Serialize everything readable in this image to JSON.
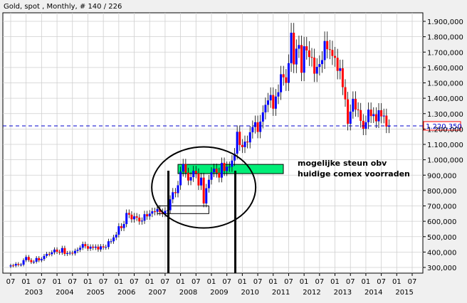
{
  "chart_data": {
    "type": "candlestick",
    "title": "Gold, spot , Monthly, # 140 / 226",
    "y_unit": "USD/oz",
    "ylim": [
      250,
      1950
    ],
    "y_ticks": [
      300,
      400,
      500,
      600,
      700,
      800,
      900,
      1000,
      1100,
      1200,
      1300,
      1400,
      1500,
      1600,
      1700,
      1800,
      1900
    ],
    "y_tick_labels": [
      "300,000",
      "400,000",
      "500,000",
      "600,000",
      "700,000",
      "800,000",
      "900,000",
      "1.000,000",
      "1.100,000",
      "1.200,000",
      "1.300,000",
      "1.400,000",
      "1.500,000",
      "1.600,000",
      "1.700,000",
      "1.800,000",
      "1.900,000"
    ],
    "x_start": "2002-07",
    "x_end": "2015-07",
    "x_month_labels": [
      "07",
      "01",
      "07",
      "01",
      "07",
      "01",
      "07",
      "01",
      "07",
      "01",
      "07",
      "01",
      "07",
      "01",
      "07",
      "01",
      "07",
      "01",
      "07",
      "01",
      "07",
      "01",
      "07",
      "01",
      "07",
      "01",
      "07"
    ],
    "x_year_labels": [
      "2003",
      "2004",
      "2005",
      "2006",
      "2007",
      "2008",
      "2009",
      "2010",
      "2011",
      "2012",
      "2013",
      "2014",
      "2015"
    ],
    "grid": true,
    "up_color": "#0000ff",
    "down_color": "#ff0000",
    "current_price": 1220.35,
    "current_label": "1.220,350",
    "annotation": {
      "text_line1": "mogelijke steun obv",
      "text_line2": "huidige comex voorraden",
      "zone_low": 910,
      "zone_high": 970,
      "zone_from": "2007-12",
      "zone_to": "2010-12",
      "zone_color": "#00ee77"
    },
    "box_zone": {
      "low": 650,
      "high": 700,
      "from": "2007-04",
      "to": "2008-12"
    },
    "vlines": [
      "2007-08",
      "2009-10"
    ],
    "circle_center": [
      "2008-10",
      820
    ],
    "series": [
      {
        "month": "2002-07",
        "close": 313
      },
      {
        "month": "2002-08",
        "close": 312
      },
      {
        "month": "2002-09",
        "close": 323
      },
      {
        "month": "2002-10",
        "close": 317
      },
      {
        "month": "2002-11",
        "close": 318
      },
      {
        "month": "2002-12",
        "close": 347
      },
      {
        "month": "2003-01",
        "close": 368
      },
      {
        "month": "2003-02",
        "close": 348
      },
      {
        "month": "2003-03",
        "close": 334
      },
      {
        "month": "2003-04",
        "close": 337
      },
      {
        "month": "2003-05",
        "close": 361
      },
      {
        "month": "2003-06",
        "close": 346
      },
      {
        "month": "2003-07",
        "close": 354
      },
      {
        "month": "2003-08",
        "close": 375
      },
      {
        "month": "2003-09",
        "close": 388
      },
      {
        "month": "2003-10",
        "close": 386
      },
      {
        "month": "2003-11",
        "close": 398
      },
      {
        "month": "2003-12",
        "close": 416
      },
      {
        "month": "2004-01",
        "close": 402
      },
      {
        "month": "2004-02",
        "close": 396
      },
      {
        "month": "2004-03",
        "close": 426
      },
      {
        "month": "2004-04",
        "close": 388
      },
      {
        "month": "2004-05",
        "close": 393
      },
      {
        "month": "2004-06",
        "close": 395
      },
      {
        "month": "2004-07",
        "close": 391
      },
      {
        "month": "2004-08",
        "close": 408
      },
      {
        "month": "2004-09",
        "close": 415
      },
      {
        "month": "2004-10",
        "close": 428
      },
      {
        "month": "2004-11",
        "close": 452
      },
      {
        "month": "2004-12",
        "close": 438
      },
      {
        "month": "2005-01",
        "close": 422
      },
      {
        "month": "2005-02",
        "close": 435
      },
      {
        "month": "2005-03",
        "close": 428
      },
      {
        "month": "2005-04",
        "close": 435
      },
      {
        "month": "2005-05",
        "close": 417
      },
      {
        "month": "2005-06",
        "close": 437
      },
      {
        "month": "2005-07",
        "close": 430
      },
      {
        "month": "2005-08",
        "close": 433
      },
      {
        "month": "2005-09",
        "close": 470
      },
      {
        "month": "2005-10",
        "close": 470
      },
      {
        "month": "2005-11",
        "close": 495
      },
      {
        "month": "2005-12",
        "close": 513
      },
      {
        "month": "2006-01",
        "close": 568
      },
      {
        "month": "2006-02",
        "close": 556
      },
      {
        "month": "2006-03",
        "close": 582
      },
      {
        "month": "2006-04",
        "close": 654
      },
      {
        "month": "2006-05",
        "close": 643
      },
      {
        "month": "2006-06",
        "close": 613
      },
      {
        "month": "2006-07",
        "close": 632
      },
      {
        "month": "2006-08",
        "close": 624
      },
      {
        "month": "2006-09",
        "close": 599
      },
      {
        "month": "2006-10",
        "close": 604
      },
      {
        "month": "2006-11",
        "close": 646
      },
      {
        "month": "2006-12",
        "close": 632
      },
      {
        "month": "2007-01",
        "close": 650
      },
      {
        "month": "2007-02",
        "close": 665
      },
      {
        "month": "2007-03",
        "close": 662
      },
      {
        "month": "2007-04",
        "close": 680
      },
      {
        "month": "2007-05",
        "close": 660
      },
      {
        "month": "2007-06",
        "close": 650
      },
      {
        "month": "2007-07",
        "close": 668
      },
      {
        "month": "2007-08",
        "close": 672
      },
      {
        "month": "2007-09",
        "close": 743
      },
      {
        "month": "2007-10",
        "close": 789
      },
      {
        "month": "2007-11",
        "close": 783
      },
      {
        "month": "2007-12",
        "close": 834
      },
      {
        "month": "2008-01",
        "close": 923
      },
      {
        "month": "2008-02",
        "close": 972
      },
      {
        "month": "2008-03",
        "close": 916
      },
      {
        "month": "2008-04",
        "close": 865
      },
      {
        "month": "2008-05",
        "close": 887
      },
      {
        "month": "2008-06",
        "close": 928
      },
      {
        "month": "2008-07",
        "close": 912
      },
      {
        "month": "2008-08",
        "close": 833
      },
      {
        "month": "2008-09",
        "close": 884
      },
      {
        "month": "2008-10",
        "close": 716
      },
      {
        "month": "2008-11",
        "close": 815
      },
      {
        "month": "2008-12",
        "close": 870
      },
      {
        "month": "2009-01",
        "close": 919
      },
      {
        "month": "2009-02",
        "close": 942
      },
      {
        "month": "2009-03",
        "close": 916
      },
      {
        "month": "2009-04",
        "close": 884
      },
      {
        "month": "2009-05",
        "close": 980
      },
      {
        "month": "2009-06",
        "close": 927
      },
      {
        "month": "2009-07",
        "close": 955
      },
      {
        "month": "2009-08",
        "close": 955
      },
      {
        "month": "2009-09",
        "close": 995
      },
      {
        "month": "2009-10",
        "close": 1040
      },
      {
        "month": "2009-11",
        "close": 1182
      },
      {
        "month": "2009-12",
        "close": 1096
      },
      {
        "month": "2010-01",
        "close": 1082
      },
      {
        "month": "2010-02",
        "close": 1118
      },
      {
        "month": "2010-03",
        "close": 1113
      },
      {
        "month": "2010-04",
        "close": 1179
      },
      {
        "month": "2010-05",
        "close": 1213
      },
      {
        "month": "2010-06",
        "close": 1244
      },
      {
        "month": "2010-07",
        "close": 1181
      },
      {
        "month": "2010-08",
        "close": 1248
      },
      {
        "month": "2010-09",
        "close": 1308
      },
      {
        "month": "2010-10",
        "close": 1357
      },
      {
        "month": "2010-11",
        "close": 1386
      },
      {
        "month": "2010-12",
        "close": 1421
      },
      {
        "month": "2011-01",
        "close": 1332
      },
      {
        "month": "2011-02",
        "close": 1411
      },
      {
        "month": "2011-03",
        "close": 1439
      },
      {
        "month": "2011-04",
        "close": 1556
      },
      {
        "month": "2011-05",
        "close": 1536
      },
      {
        "month": "2011-06",
        "close": 1500
      },
      {
        "month": "2011-07",
        "close": 1628
      },
      {
        "month": "2011-08",
        "close": 1826
      },
      {
        "month": "2011-09",
        "close": 1620
      },
      {
        "month": "2011-10",
        "close": 1722
      },
      {
        "month": "2011-11",
        "close": 1746
      },
      {
        "month": "2011-12",
        "close": 1566
      },
      {
        "month": "2012-01",
        "close": 1738
      },
      {
        "month": "2012-02",
        "close": 1711
      },
      {
        "month": "2012-03",
        "close": 1668
      },
      {
        "month": "2012-04",
        "close": 1664
      },
      {
        "month": "2012-05",
        "close": 1560
      },
      {
        "month": "2012-06",
        "close": 1604
      },
      {
        "month": "2012-07",
        "close": 1622
      },
      {
        "month": "2012-08",
        "close": 1648
      },
      {
        "month": "2012-09",
        "close": 1772
      },
      {
        "month": "2012-10",
        "close": 1719
      },
      {
        "month": "2012-11",
        "close": 1714
      },
      {
        "month": "2012-12",
        "close": 1675
      },
      {
        "month": "2013-01",
        "close": 1663
      },
      {
        "month": "2013-02",
        "close": 1578
      },
      {
        "month": "2013-03",
        "close": 1595
      },
      {
        "month": "2013-04",
        "close": 1472
      },
      {
        "month": "2013-05",
        "close": 1393
      },
      {
        "month": "2013-06",
        "close": 1234
      },
      {
        "month": "2013-07",
        "close": 1313
      },
      {
        "month": "2013-08",
        "close": 1396
      },
      {
        "month": "2013-09",
        "close": 1327
      },
      {
        "month": "2013-10",
        "close": 1323
      },
      {
        "month": "2013-11",
        "close": 1253
      },
      {
        "month": "2013-12",
        "close": 1202
      },
      {
        "month": "2014-01",
        "close": 1244
      },
      {
        "month": "2014-02",
        "close": 1326
      },
      {
        "month": "2014-03",
        "close": 1284
      },
      {
        "month": "2014-04",
        "close": 1296
      },
      {
        "month": "2014-05",
        "close": 1250
      },
      {
        "month": "2014-06",
        "close": 1322
      },
      {
        "month": "2014-07",
        "close": 1282
      },
      {
        "month": "2014-08",
        "close": 1287
      },
      {
        "month": "2014-09",
        "close": 1216
      },
      {
        "month": "2014-10",
        "close": 1220
      }
    ]
  }
}
